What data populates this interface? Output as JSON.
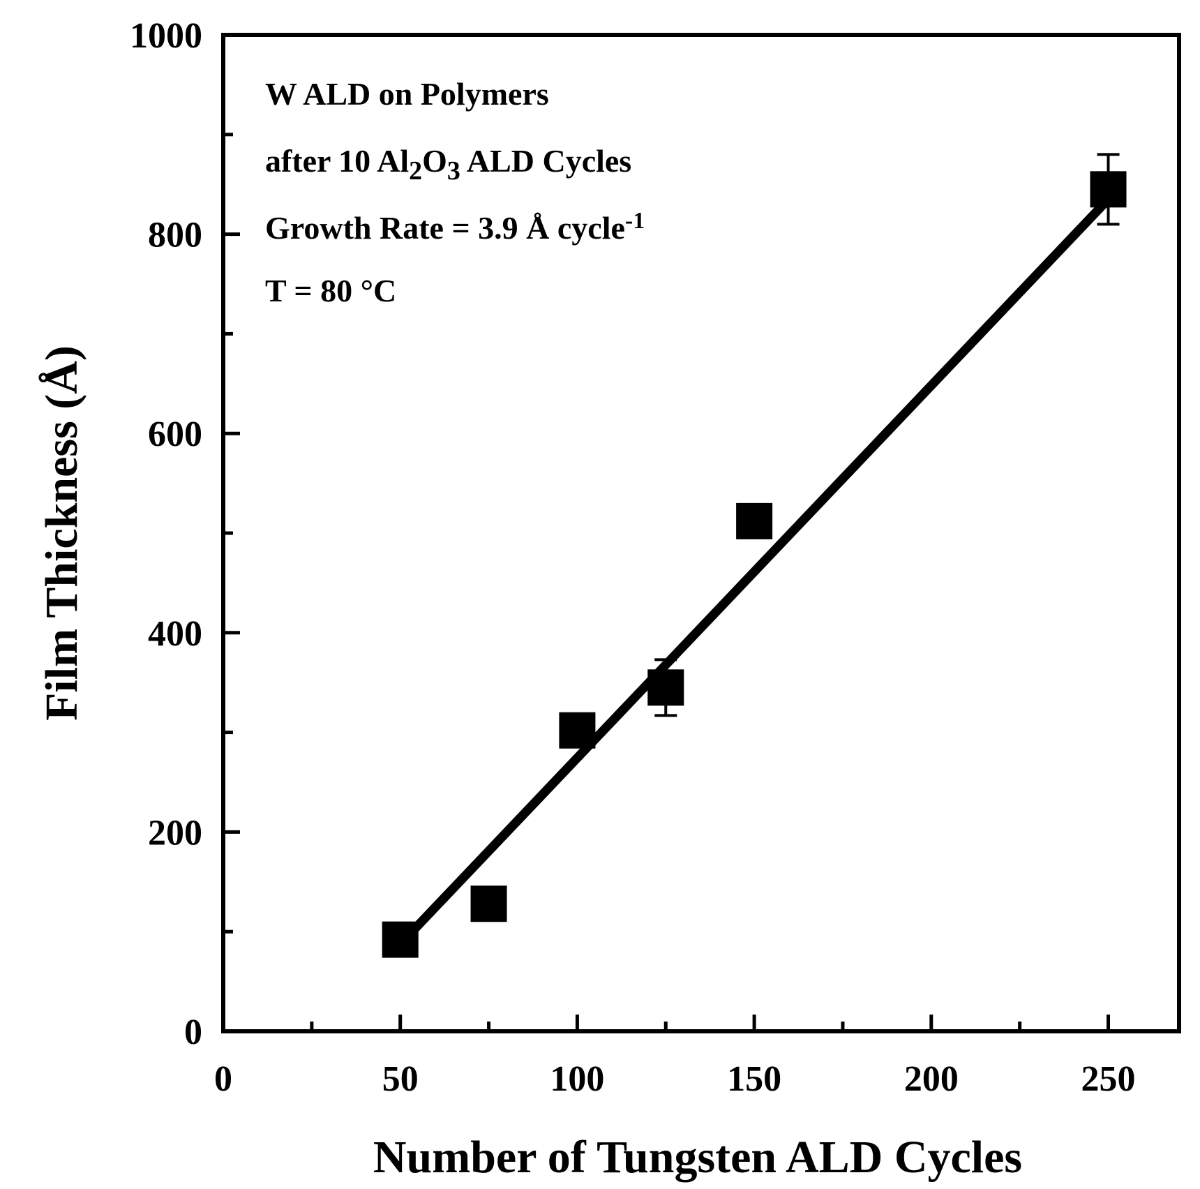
{
  "chart_data": {
    "type": "scatter",
    "xlabel": "Number  of Tungsten ALD Cycles",
    "ylabel": "Film Thickness (Å)",
    "xlim": [
      0,
      270
    ],
    "ylim": [
      0,
      1000
    ],
    "x_ticks": [
      0,
      50,
      100,
      150,
      200,
      250
    ],
    "x_minor_ticks": [
      25,
      75,
      125,
      175,
      225
    ],
    "y_ticks": [
      0,
      200,
      400,
      600,
      800,
      1000
    ],
    "y_minor_ticks": [
      100,
      300,
      500,
      700,
      900
    ],
    "grid": false,
    "legend": "none",
    "annotations": [
      {
        "text": "W ALD on Polymers"
      },
      {
        "text": "after 10 Al",
        "sub1": "2",
        "mid": "O",
        "sub2": "3",
        "rest": " ALD Cycles"
      },
      {
        "text": "Growth Rate = 3.9 Å cycle",
        "sup": "-1"
      },
      {
        "text": "T = 80 °C"
      }
    ],
    "series": [
      {
        "marker": "square",
        "color": "#000000",
        "points": [
          {
            "x": 50,
            "y": 92,
            "err": 0
          },
          {
            "x": 75,
            "y": 128,
            "err": 0
          },
          {
            "x": 100,
            "y": 302,
            "err": 0
          },
          {
            "x": 125,
            "y": 345,
            "err": 28
          },
          {
            "x": 150,
            "y": 512,
            "err": 0
          },
          {
            "x": 250,
            "y": 845,
            "err": 35
          }
        ]
      }
    ],
    "fit_line": {
      "x": [
        52,
        250
      ],
      "y": [
        95,
        835
      ]
    }
  }
}
